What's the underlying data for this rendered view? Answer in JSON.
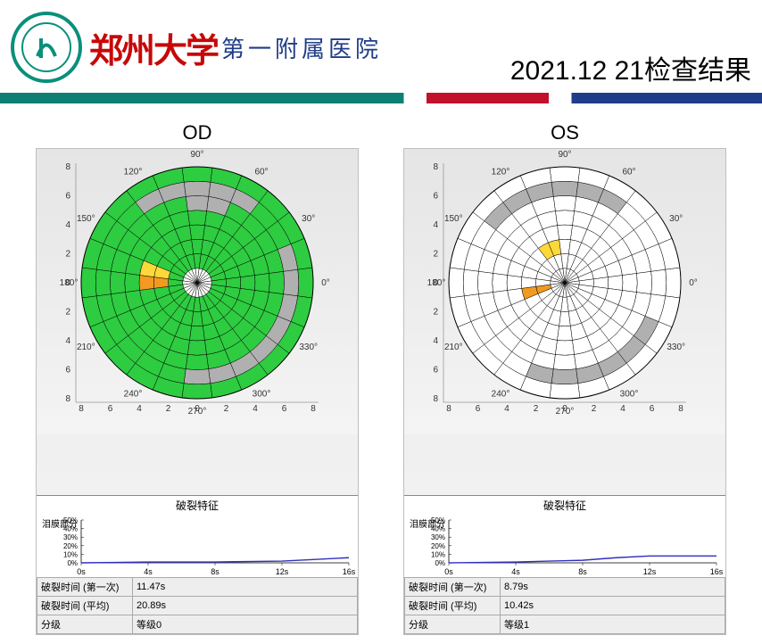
{
  "header": {
    "brand_cn": "郑州大学",
    "brand_sub": "第一附属医院",
    "date_title": "2021.12 21检查结果"
  },
  "colors": {
    "green": "#2ecc40",
    "yellow": "#fdd83b",
    "orange": "#f29a1f",
    "gray": "#b0b0b0",
    "white": "#ffffff",
    "grid": "#000000",
    "panel_bg1": "#e5e5e5",
    "panel_bg2": "#f4f4f4",
    "accent_teal": "#0e7f74",
    "accent_red": "#c2112a",
    "accent_blue": "#1f3d88",
    "logo_border": "#0a8f7a",
    "line_plot_color": "#3030c0"
  },
  "polar_common": {
    "rings": 8,
    "sectors": 24,
    "radius_ticks": [
      0,
      2,
      4,
      6,
      8
    ],
    "angle_labels": [
      0,
      30,
      60,
      90,
      120,
      150,
      180,
      210,
      240,
      270,
      300,
      330
    ],
    "inner_blank_rings": 1
  },
  "eyes": [
    {
      "key": "OD",
      "title": "OD",
      "default_fill": "green",
      "cells_override": {
        "gray": [
          [
            7,
            60
          ],
          [
            7,
            75
          ],
          [
            6,
            75
          ],
          [
            7,
            90
          ],
          [
            6,
            90
          ],
          [
            7,
            105
          ],
          [
            7,
            120
          ],
          [
            7,
            15
          ],
          [
            7,
            0
          ],
          [
            7,
            -15
          ],
          [
            7,
            -30
          ],
          [
            7,
            -45
          ],
          [
            7,
            -60
          ],
          [
            7,
            -75
          ],
          [
            7,
            -90
          ]
        ],
        "orange": [
          [
            4,
            180
          ],
          [
            3,
            180
          ]
        ],
        "yellow": [
          [
            4,
            165
          ],
          [
            3,
            165
          ]
        ]
      },
      "line_chart": {
        "title": "破裂特征",
        "y_label": "泪膜部分",
        "x_ticks": [
          "0s",
          "4s",
          "8s",
          "12s",
          "16s"
        ],
        "y_ticks": [
          "0%",
          "10%",
          "20%",
          "30%",
          "40%",
          "50%"
        ],
        "points": [
          [
            0,
            0
          ],
          [
            4,
            1
          ],
          [
            8,
            1
          ],
          [
            12,
            2
          ],
          [
            14,
            4
          ],
          [
            16,
            6
          ]
        ]
      },
      "metrics": [
        {
          "label": "破裂时间 (第一次)",
          "value": "11.47s"
        },
        {
          "label": "破裂时间 (平均)",
          "value": "20.89s"
        },
        {
          "label": "分级",
          "value": "等级0"
        }
      ]
    },
    {
      "key": "OS",
      "title": "OS",
      "default_fill": "white",
      "cells_override": {
        "gray": [
          [
            7,
            60
          ],
          [
            7,
            75
          ],
          [
            7,
            90
          ],
          [
            7,
            105
          ],
          [
            7,
            120
          ],
          [
            7,
            135
          ],
          [
            7,
            -30
          ],
          [
            7,
            -45
          ],
          [
            7,
            -60
          ],
          [
            7,
            -75
          ],
          [
            7,
            -90
          ],
          [
            7,
            -105
          ]
        ],
        "yellow": [
          [
            3,
            120
          ],
          [
            3,
            105
          ]
        ],
        "orange": [
          [
            3,
            195
          ],
          [
            2,
            195
          ]
        ]
      },
      "line_chart": {
        "title": "破裂特征",
        "y_label": "泪膜部分",
        "x_ticks": [
          "0s",
          "4s",
          "8s",
          "12s",
          "16s"
        ],
        "y_ticks": [
          "0%",
          "10%",
          "20%",
          "30%",
          "40%",
          "50%"
        ],
        "points": [
          [
            0,
            0
          ],
          [
            4,
            1
          ],
          [
            6,
            2
          ],
          [
            8,
            3
          ],
          [
            10,
            6
          ],
          [
            12,
            8
          ],
          [
            16,
            8
          ]
        ]
      },
      "metrics": [
        {
          "label": "破裂时间 (第一次)",
          "value": "8.79s"
        },
        {
          "label": "破裂时间 (平均)",
          "value": "10.42s"
        },
        {
          "label": "分级",
          "value": "等级1"
        }
      ]
    }
  ]
}
